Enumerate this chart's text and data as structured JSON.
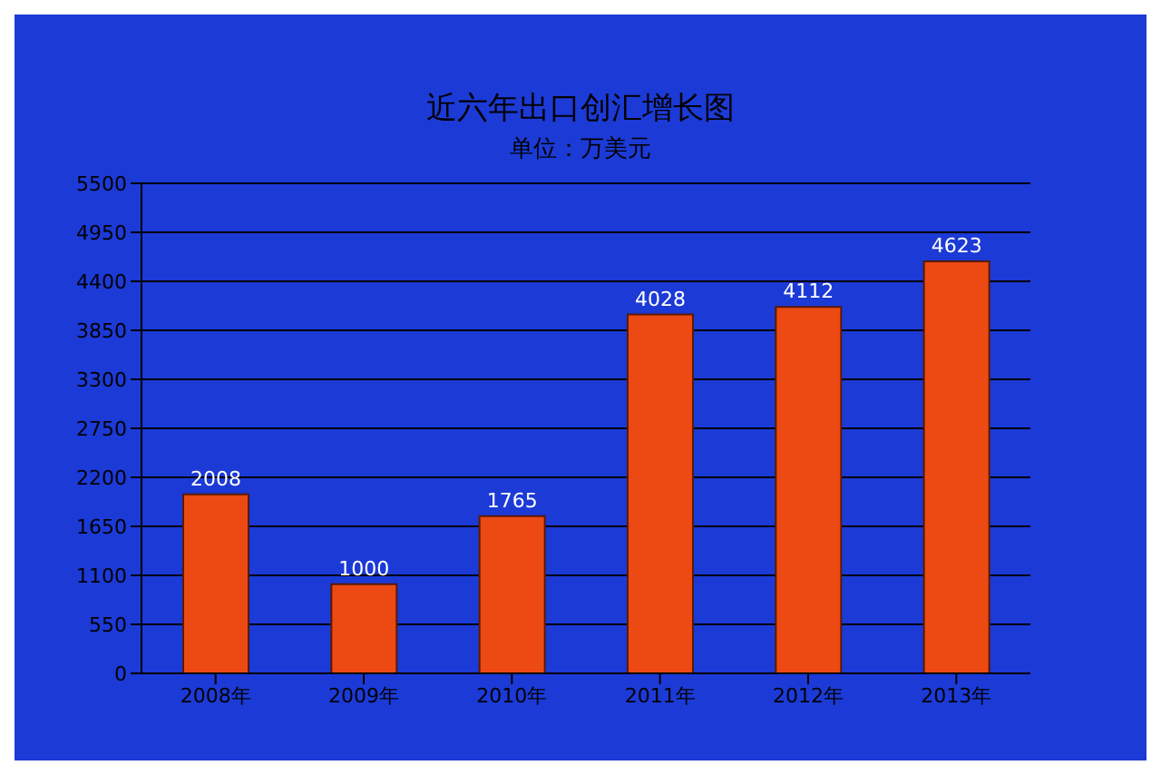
{
  "chart_data": {
    "type": "bar",
    "title": "近六年出口创汇增长图",
    "subtitle": "单位：万美元",
    "categories": [
      "2008年",
      "2009年",
      "2010年",
      "2011年",
      "2012年",
      "2013年"
    ],
    "values": [
      2008,
      1000,
      1765,
      4028,
      4112,
      4623
    ],
    "color": "#ec4a12",
    "ylim": [
      0,
      5500
    ],
    "yticks": [
      0,
      550,
      1100,
      1650,
      2200,
      2750,
      3300,
      3850,
      4400,
      4950,
      5500
    ],
    "grid": "y",
    "data_labels": true
  }
}
